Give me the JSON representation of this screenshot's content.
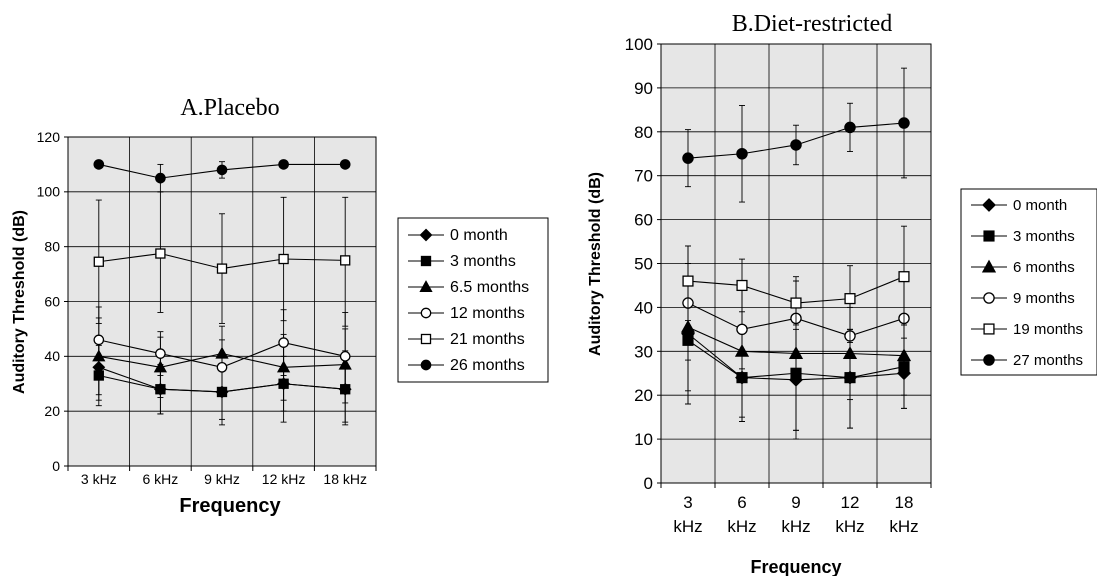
{
  "chart_data": [
    {
      "type": "line",
      "title": "A.Placebo",
      "xlabel": "Frequency",
      "ylabel": "Auditory Threshold (dB)",
      "categories": [
        "3 kHz",
        "6 kHz",
        "9 kHz",
        "12 kHz",
        "18 kHz"
      ],
      "ylim": [
        0,
        120
      ],
      "yticks": [
        0,
        20,
        40,
        60,
        80,
        100,
        120
      ],
      "grid": true,
      "legend": "right",
      "series": [
        {
          "name": "0 month",
          "marker": "diamond-filled",
          "values": [
            36,
            28,
            27,
            30,
            28
          ],
          "err": [
            [
              24,
              45
            ],
            [
              19,
              40
            ],
            [
              15,
              40
            ],
            [
              20,
              40
            ],
            [
              16,
              40
            ]
          ]
        },
        {
          "name": "3 months",
          "marker": "square-filled",
          "values": [
            33,
            28,
            27,
            30,
            28
          ],
          "err": [
            [
              22,
              44
            ],
            [
              19,
              37
            ],
            [
              17,
              37
            ],
            [
              16,
              45
            ],
            [
              15,
              42
            ]
          ]
        },
        {
          "name": "6.5 months",
          "marker": "triangle-filled",
          "values": [
            40,
            36,
            41,
            36,
            37
          ],
          "err": [
            [
              26,
              54
            ],
            [
              25,
              47
            ],
            [
              27,
              51
            ],
            [
              24,
              48
            ],
            [
              23,
              50
            ]
          ]
        },
        {
          "name": "12 months",
          "marker": "circle-open",
          "values": [
            46,
            41,
            36,
            45,
            40
          ],
          "err": [
            [
              34,
              58
            ],
            [
              33,
              49
            ],
            [
              26,
              46
            ],
            [
              33,
              57
            ],
            [
              29,
              56
            ]
          ]
        },
        {
          "name": "21 months",
          "marker": "square-open",
          "values": [
            74.5,
            77.5,
            72,
            75.5,
            75
          ],
          "err": [
            [
              52,
              97
            ],
            [
              56,
              100
            ],
            [
              52,
              92
            ],
            [
              53,
              98
            ],
            [
              51,
              98
            ]
          ]
        },
        {
          "name": "26 months",
          "marker": "circle-filled",
          "values": [
            110,
            105,
            108,
            110,
            110
          ],
          "err": [
            [
              110,
              110
            ],
            [
              100,
              110
            ],
            [
              105,
              111
            ],
            [
              110,
              110
            ],
            [
              110,
              110
            ]
          ]
        }
      ]
    },
    {
      "type": "line",
      "title": "B.Diet-restricted",
      "xlabel": "Frequency",
      "ylabel": "Auditory Threshold (dB)",
      "categories": [
        [
          "3",
          "kHz"
        ],
        [
          "6",
          "kHz"
        ],
        [
          "9",
          "kHz"
        ],
        [
          "12",
          "kHz"
        ],
        [
          "18",
          "kHz"
        ]
      ],
      "ylim": [
        0,
        100
      ],
      "yticks": [
        0,
        10,
        20,
        30,
        40,
        50,
        60,
        70,
        80,
        90,
        100
      ],
      "grid": true,
      "legend": "right",
      "series": [
        {
          "name": "0 month",
          "marker": "diamond-filled",
          "values": [
            34,
            24,
            23.5,
            24,
            25
          ],
          "err": [
            [
              18,
              50
            ],
            [
              14,
              34
            ],
            [
              12,
              36
            ],
            [
              12.5,
              35
            ],
            [
              17,
              33
            ]
          ]
        },
        {
          "name": "3 months",
          "marker": "square-filled",
          "values": [
            32.5,
            24,
            25,
            24,
            26.5
          ],
          "err": [
            [
              18,
              47
            ],
            [
              14,
              34
            ],
            [
              10,
              40
            ],
            [
              12.5,
              35
            ],
            [
              17,
              36
            ]
          ]
        },
        {
          "name": "6 months",
          "marker": "triangle-filled",
          "values": [
            35.5,
            30,
            29.5,
            29.5,
            29
          ],
          "err": [
            [
              21,
              50
            ],
            [
              15,
              45
            ],
            [
              12,
              46
            ],
            [
              19,
              40
            ],
            [
              20,
              38
            ]
          ]
        },
        {
          "name": "9 months",
          "marker": "circle-open",
          "values": [
            41,
            35,
            37.5,
            33.5,
            37.5
          ],
          "err": [
            [
              28,
              54
            ],
            [
              26,
              44
            ],
            [
              30,
              46
            ],
            [
              25,
              42
            ],
            [
              28,
              47
            ]
          ]
        },
        {
          "name": "19 months",
          "marker": "square-open",
          "values": [
            46,
            45,
            41,
            42,
            47
          ],
          "err": [
            [
              37,
              54
            ],
            [
              39,
              51
            ],
            [
              35,
              47
            ],
            [
              32,
              49.5
            ],
            [
              36,
              58.5
            ]
          ]
        },
        {
          "name": "27 months",
          "marker": "circle-filled",
          "values": [
            74,
            75,
            77,
            81,
            82
          ],
          "err": [
            [
              67.5,
              80.5
            ],
            [
              64,
              86
            ],
            [
              72.5,
              81.5
            ],
            [
              75.5,
              86.5
            ],
            [
              69.5,
              94.5
            ]
          ]
        }
      ]
    }
  ]
}
